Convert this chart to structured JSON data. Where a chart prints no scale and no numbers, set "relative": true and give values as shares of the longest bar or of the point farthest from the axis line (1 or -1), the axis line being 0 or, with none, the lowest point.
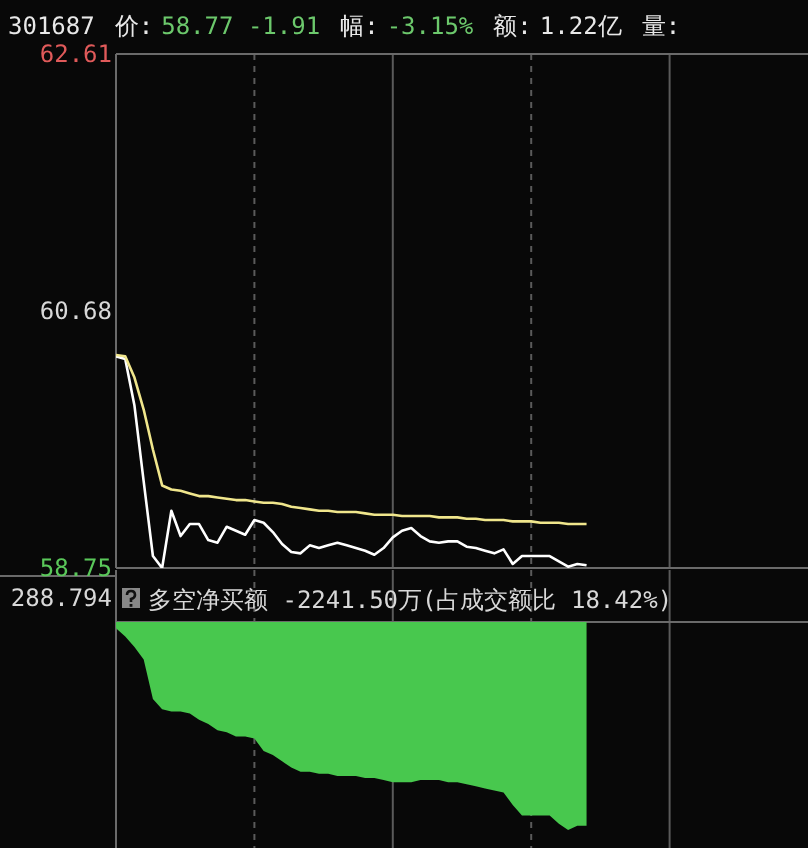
{
  "chart_data": [
    {
      "type": "line",
      "title": "301687",
      "annotations": [
        "价:",
        "58.77 -1.91",
        "幅:",
        "-3.15%",
        "额:",
        "1.22亿",
        "量:"
      ],
      "categories": [
        null,
        null,
        null,
        null,
        null,
        null,
        null,
        null,
        null,
        null,
        null,
        null,
        null,
        null,
        null,
        null,
        null,
        null,
        null,
        null,
        null,
        null,
        null,
        null,
        null,
        null,
        null,
        null,
        null,
        null,
        null,
        null,
        null,
        null,
        null,
        null,
        null,
        null,
        null,
        null,
        null,
        null,
        null,
        null,
        null,
        null,
        null,
        null,
        null,
        null,
        null,
        null,
        null,
        null,
        null,
        null,
        null,
        null,
        null,
        null,
        null,
        null,
        null,
        null,
        null,
        null,
        null,
        null,
        null,
        null,
        null,
        null,
        null,
        null,
        null,
        null
      ],
      "ylim": [
        58.75,
        62.61
      ],
      "yticks": [
        62.61,
        60.68,
        58.75
      ],
      "tick_labels": "y",
      "grid": "x",
      "series": [
        {
          "color": "#ffffff",
          "values": [
            60.34,
            60.32,
            59.97,
            59.4,
            58.84,
            58.75,
            59.18,
            58.99,
            59.08,
            59.08,
            58.96,
            58.94,
            59.06,
            59.03,
            59.0,
            59.11,
            59.09,
            59.02,
            58.93,
            58.87,
            58.86,
            58.92,
            58.9,
            58.92,
            58.94,
            58.92,
            58.9,
            58.88,
            58.85,
            58.9,
            58.98,
            59.03,
            59.05,
            58.99,
            58.95,
            58.94,
            58.95,
            58.95,
            58.91,
            58.9,
            58.88,
            58.86,
            58.89,
            58.78,
            58.84,
            58.84,
            58.84,
            58.84,
            58.8,
            58.76,
            58.78,
            58.77,
            null,
            null,
            null,
            null,
            null,
            null,
            null,
            null,
            null,
            null,
            null,
            null,
            null,
            null,
            null,
            null,
            null,
            null,
            null,
            null,
            null,
            null,
            null,
            null
          ]
        },
        {
          "color": "#f0e68c",
          "values": [
            60.35,
            60.34,
            60.18,
            59.94,
            59.64,
            59.37,
            59.34,
            59.33,
            59.31,
            59.29,
            59.29,
            59.28,
            59.27,
            59.26,
            59.26,
            59.25,
            59.24,
            59.24,
            59.23,
            59.21,
            59.2,
            59.19,
            59.18,
            59.18,
            59.17,
            59.17,
            59.17,
            59.16,
            59.15,
            59.15,
            59.15,
            59.14,
            59.14,
            59.14,
            59.14,
            59.13,
            59.13,
            59.13,
            59.12,
            59.12,
            59.11,
            59.11,
            59.11,
            59.1,
            59.1,
            59.1,
            59.09,
            59.09,
            59.09,
            59.08,
            59.08,
            59.08,
            null,
            null,
            null,
            null,
            null,
            null,
            null,
            null,
            null,
            null,
            null,
            null,
            null,
            null,
            null,
            null,
            null,
            null,
            null,
            null,
            null,
            null,
            null,
            null
          ]
        }
      ]
    },
    {
      "type": "area",
      "relative": true,
      "tick_labels": false,
      "grid": "x",
      "categories": [
        null,
        null,
        null,
        null,
        null,
        null,
        null,
        null,
        null,
        null,
        null,
        null,
        null,
        null,
        null,
        null,
        null,
        null,
        null,
        null,
        null,
        null,
        null,
        null,
        null,
        null,
        null,
        null,
        null,
        null,
        null,
        null,
        null,
        null,
        null,
        null,
        null,
        null,
        null,
        null,
        null,
        null,
        null,
        null,
        null,
        null,
        null,
        null,
        null,
        null,
        null,
        null,
        null,
        null,
        null,
        null,
        null,
        null,
        null,
        null,
        null,
        null,
        null,
        null,
        null,
        null,
        null,
        null,
        null,
        null,
        null,
        null,
        null,
        null,
        null,
        null
      ],
      "annotations": [
        "288.794",
        "多空净买额 -2241.50万(占成交额比 18.42%)"
      ],
      "series": [
        {
          "color": "#48c84e",
          "values": [
            -0.03,
            -0.07,
            -0.12,
            -0.18,
            -0.37,
            -0.42,
            -0.43,
            -0.43,
            -0.44,
            -0.47,
            -0.49,
            -0.52,
            -0.53,
            -0.55,
            -0.55,
            -0.56,
            -0.62,
            -0.64,
            -0.67,
            -0.7,
            -0.72,
            -0.72,
            -0.73,
            -0.73,
            -0.74,
            -0.74,
            -0.74,
            -0.75,
            -0.75,
            -0.76,
            -0.77,
            -0.77,
            -0.77,
            -0.76,
            -0.76,
            -0.76,
            -0.77,
            -0.77,
            -0.78,
            -0.79,
            -0.8,
            -0.81,
            -0.82,
            -0.88,
            -0.93,
            -0.93,
            -0.93,
            -0.93,
            -0.97,
            -1,
            -0.98,
            -0.98,
            null,
            null,
            null,
            null,
            null,
            null,
            null,
            null,
            null,
            null,
            null,
            null,
            null,
            null,
            null,
            null,
            null,
            null,
            null,
            null,
            null,
            null,
            null,
            null
          ]
        }
      ]
    }
  ]
}
